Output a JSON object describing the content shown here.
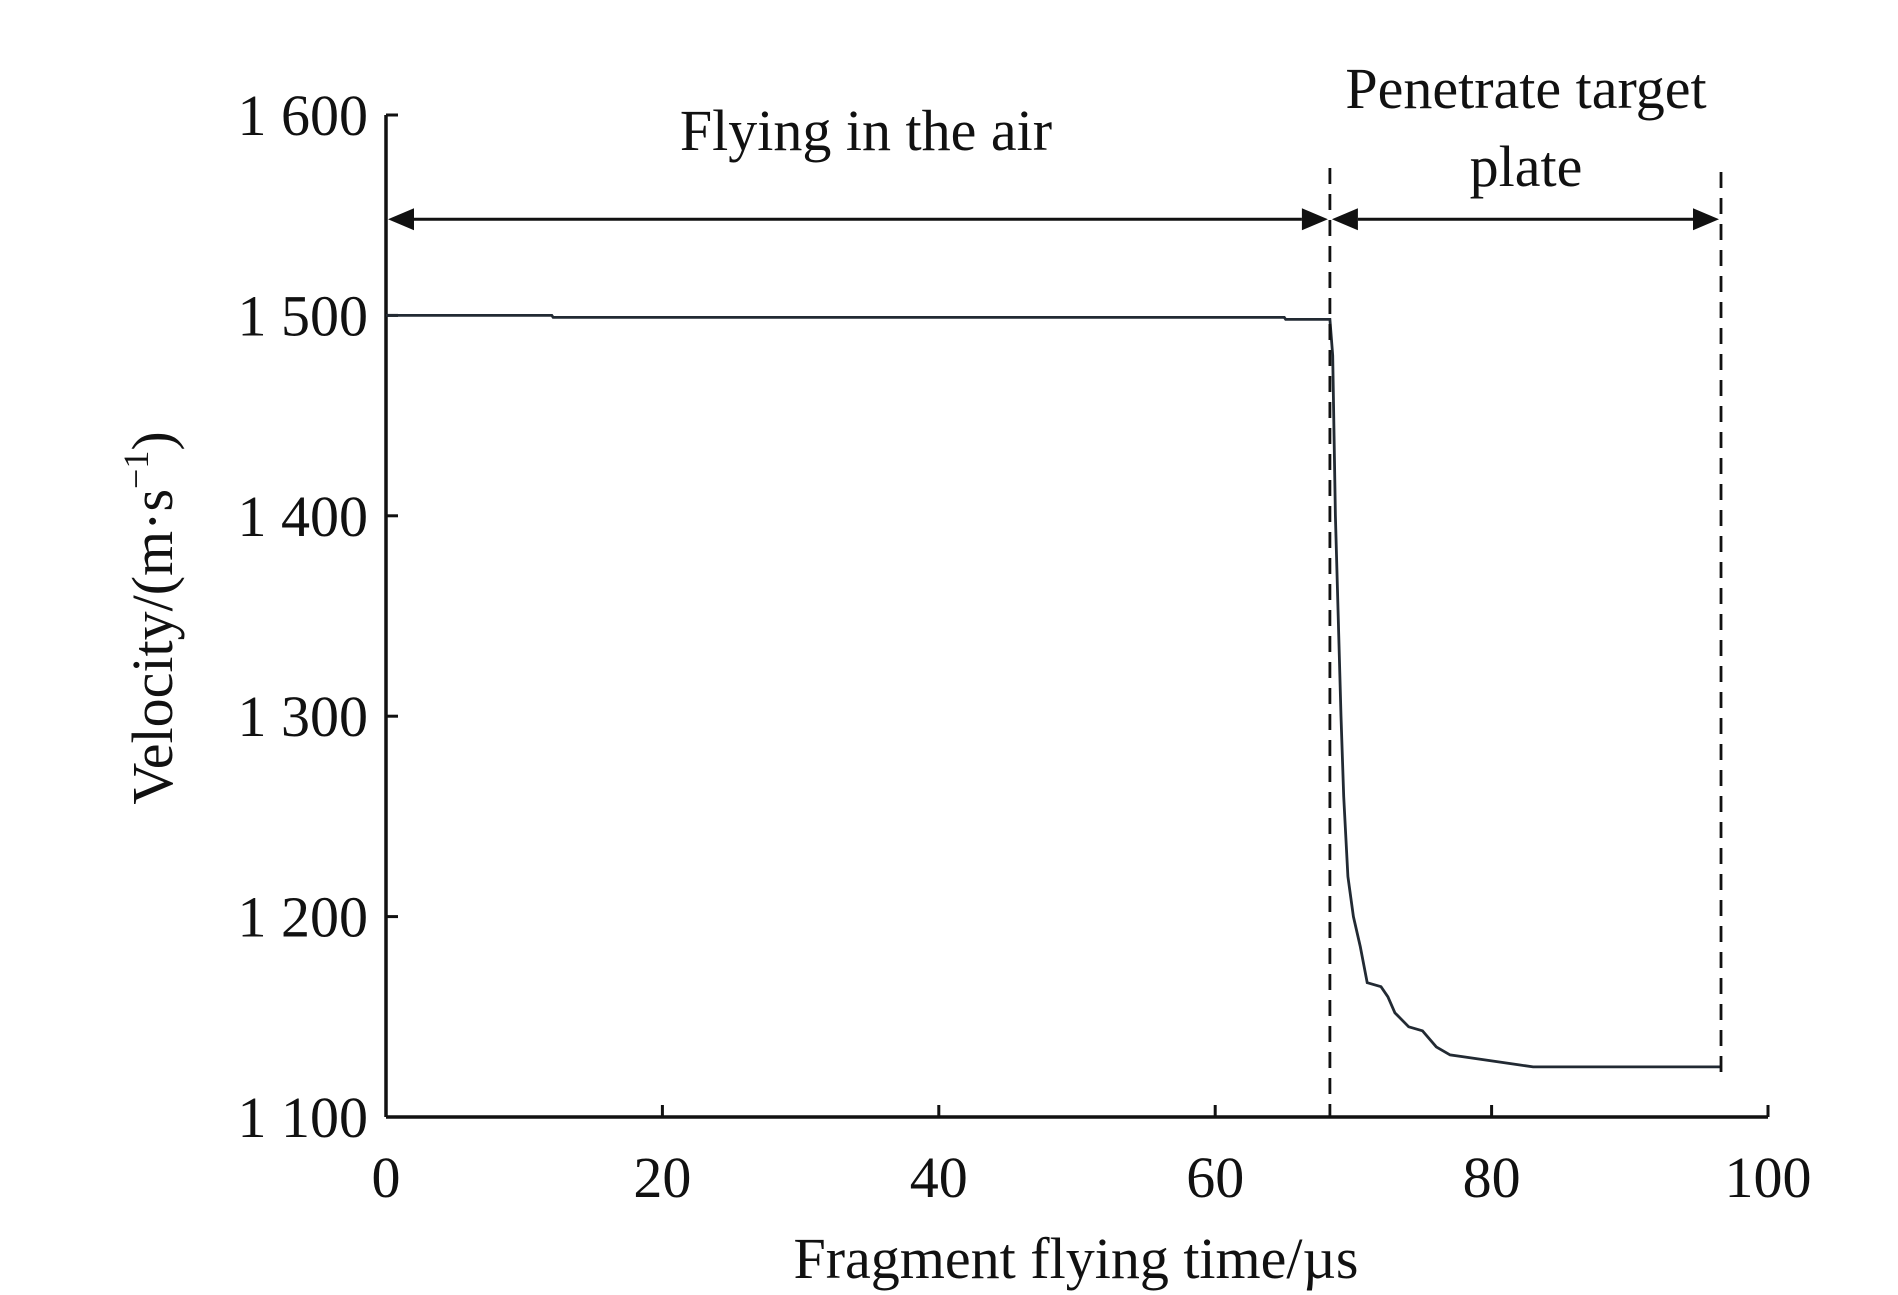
{
  "chart_data": {
    "type": "line",
    "title": "",
    "xlabel": "Fragment flying time/µs",
    "ylabel_main": "Velocity/(m·s",
    "ylabel_sup": "−1",
    "ylabel_close": ")",
    "xlim": [
      0,
      100
    ],
    "ylim": [
      1100,
      1600
    ],
    "x_ticks": [
      0,
      20,
      40,
      60,
      80,
      100
    ],
    "x_tick_labels": [
      "0",
      "20",
      "40",
      "60",
      "80",
      "100"
    ],
    "y_ticks": [
      1100,
      1200,
      1300,
      1400,
      1500,
      1600
    ],
    "y_tick_labels": [
      "1 100",
      "1 200",
      "1 300",
      "1 400",
      "1 500",
      "1 600"
    ],
    "grid": false,
    "series": [
      {
        "color": "#222a33",
        "x": [
          0,
          12,
          12.1,
          65,
          65.1,
          68.3,
          68.5,
          68.7,
          68.9,
          69.1,
          69.3,
          69.6,
          70,
          70.5,
          71,
          72,
          72.5,
          73,
          74,
          75,
          76,
          77,
          78,
          80,
          82,
          83,
          90,
          96.6
        ],
        "y": [
          1500,
          1500,
          1499,
          1499,
          1498,
          1498,
          1480,
          1400,
          1350,
          1300,
          1260,
          1220,
          1200,
          1185,
          1167,
          1165,
          1160,
          1152,
          1145,
          1143,
          1135,
          1131,
          1130,
          1128,
          1126,
          1125,
          1125,
          1125
        ]
      }
    ],
    "annotations": {
      "region1_label": "Flying in the air",
      "region2_label_line1": "Penetrate target",
      "region2_label_line2": "plate",
      "boundaries_x": [
        68.3,
        96.6
      ],
      "arrow_y": 1548
    }
  }
}
